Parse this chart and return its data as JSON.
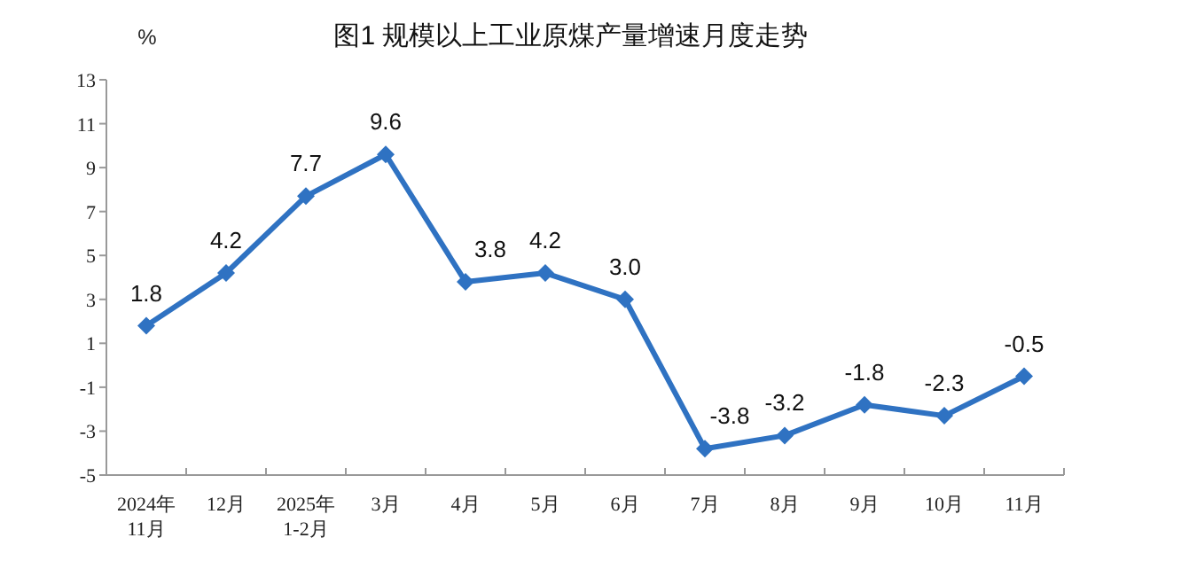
{
  "chart_data": {
    "type": "line",
    "title": "图1  规模以上工业原煤产量增速月度走势",
    "ylabel": "%",
    "categories": [
      "2024年\n11月",
      "12月",
      "2025年\n1-2月",
      "3月",
      "4月",
      "5月",
      "6月",
      "7月",
      "8月",
      "9月",
      "10月",
      "11月"
    ],
    "series": [
      {
        "color": "#2f72c2",
        "values": [
          1.8,
          4.2,
          7.7,
          9.6,
          3.8,
          4.2,
          3.0,
          -3.8,
          -3.2,
          -1.8,
          -2.3,
          -0.5
        ],
        "value_labels": [
          "1.8",
          "4.2",
          "7.7",
          "9.6",
          "3.8",
          "4.2",
          "3.0",
          "-3.8",
          "-3.2",
          "-1.8",
          "-2.3",
          "-0.5"
        ]
      }
    ],
    "ylim": [
      -5,
      13
    ],
    "yticks": [
      -5,
      -3,
      -1,
      1,
      3,
      5,
      7,
      9,
      11,
      13
    ],
    "marker": "diamond",
    "line_style": "solid",
    "grid": false
  }
}
